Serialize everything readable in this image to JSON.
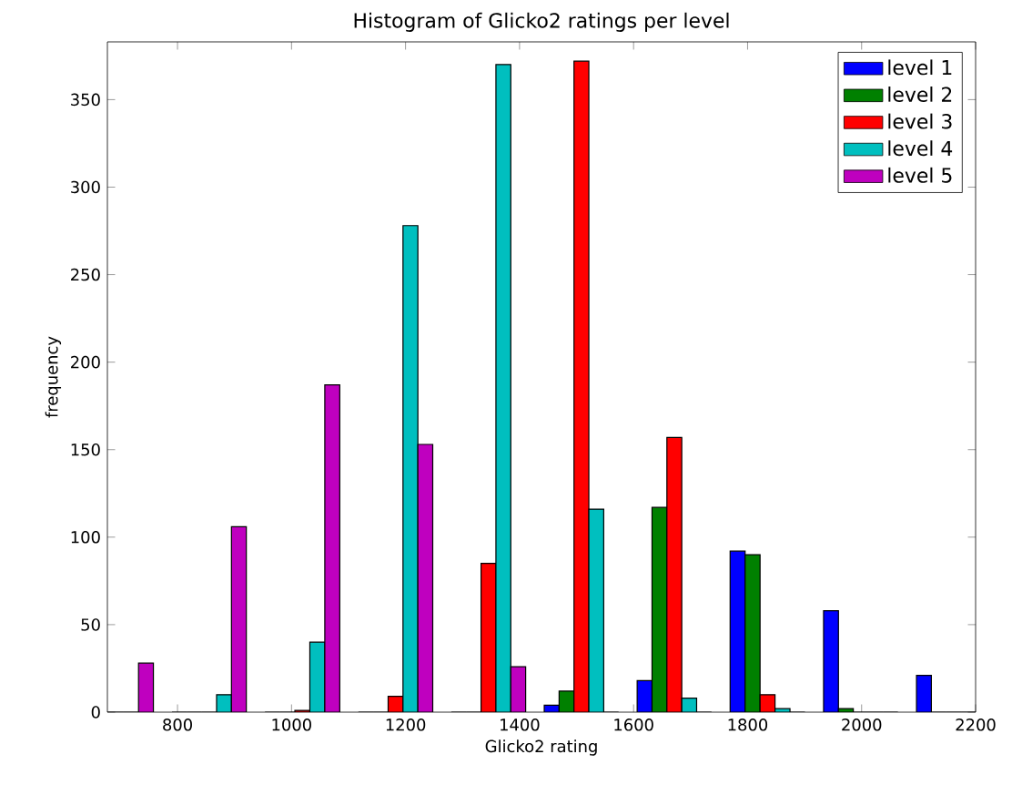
{
  "chart_data": {
    "type": "histogram",
    "title": "Histogram of Glicko2 ratings per level",
    "xlabel": "Glicko2 rating",
    "ylabel": "frequency",
    "bins": [
      611,
      774,
      937,
      1101,
      1264,
      1427,
      1590,
      1753,
      1917,
      2080,
      2243
    ],
    "series": [
      {
        "name": "level 1",
        "color": "#0000ff",
        "values": [
          0,
          0,
          0,
          0,
          0,
          4,
          18,
          92,
          58,
          21
        ]
      },
      {
        "name": "level 2",
        "color": "#008000",
        "values": [
          0,
          0,
          0,
          0,
          0,
          12,
          117,
          90,
          2,
          0
        ]
      },
      {
        "name": "level 3",
        "color": "#ff0000",
        "values": [
          0,
          0,
          1,
          9,
          85,
          372,
          157,
          10,
          0,
          0
        ]
      },
      {
        "name": "level 4",
        "color": "#00bfbf",
        "values": [
          0,
          10,
          40,
          278,
          370,
          116,
          8,
          2,
          0,
          0
        ]
      },
      {
        "name": "level 5",
        "color": "#bf00bf",
        "values": [
          28,
          106,
          187,
          153,
          26,
          0,
          0,
          0,
          0,
          0
        ]
      }
    ],
    "xlim": [
      677,
      2200
    ],
    "ylim": [
      0,
      383
    ],
    "xticks": [
      800,
      1000,
      1200,
      1400,
      1600,
      1800,
      2000,
      2200
    ],
    "yticks": [
      0,
      50,
      100,
      150,
      200,
      250,
      300,
      350
    ],
    "grid": false,
    "legend": "top right"
  }
}
